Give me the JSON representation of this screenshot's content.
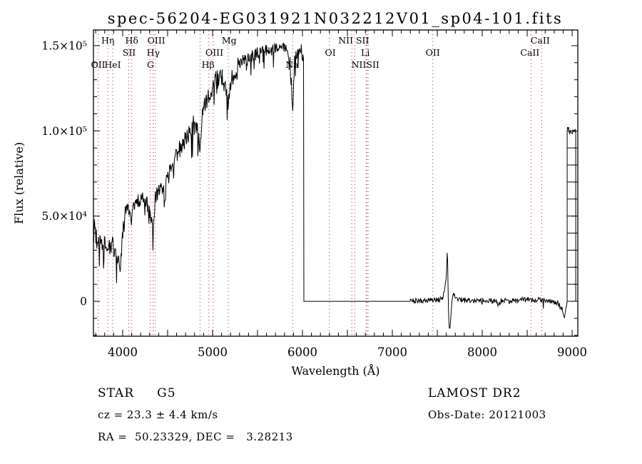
{
  "title": "spec-56204-EG031921N032212V01_sp04-101.fits",
  "annotations": {
    "class_label": "STAR     G5",
    "cz": "cz = 23.3 ± 4.4 km/s",
    "radec": "RA =  50.23329, DEC =   3.28213",
    "survey": "LAMOST DR2",
    "obs_date": "Obs-Date: 20121003"
  },
  "chart_data": {
    "type": "line",
    "title": "spec-56204-EG031921N032212V01_sp04-101.fits",
    "xlabel": "Wavelength (Å)",
    "ylabel": "Flux (relative)",
    "xlim": [
      3675,
      9063
    ],
    "ylim": [
      -20500,
      159200
    ],
    "grid": false,
    "x_ticks": [
      {
        "value": 4000,
        "label": "4000"
      },
      {
        "value": 5000,
        "label": "5000"
      },
      {
        "value": 6000,
        "label": "6000"
      },
      {
        "value": 7000,
        "label": "7000"
      },
      {
        "value": 8000,
        "label": "8000"
      },
      {
        "value": 9000,
        "label": "9000"
      }
    ],
    "x_minor_step": 100,
    "x_major_step": 500,
    "y_ticks": [
      {
        "value": 0,
        "label": "0"
      },
      {
        "value": 50000,
        "label": "5.0×10⁴"
      },
      {
        "value": 100000,
        "label": "1.0×10⁵"
      },
      {
        "value": 150000,
        "label": "1.5×10⁵"
      }
    ],
    "y_minor_step": 10000,
    "y_major_step": 50000,
    "spectrum_color": "#000000",
    "marker_color": "#a83232",
    "line_markers": [
      3727,
      3835,
      3889,
      4068,
      4101,
      4305,
      4340,
      4363,
      4861,
      4959,
      5007,
      5175,
      5892,
      6300,
      6548,
      6583,
      6708,
      6716,
      6731,
      7450,
      8542,
      8662
    ],
    "line_labels": [
      {
        "text": "Hη",
        "anchor": 3835,
        "row": 1
      },
      {
        "text": "Hδ",
        "anchor": 4101,
        "row": 1
      },
      {
        "text": "OIII",
        "anchor": 4375,
        "row": 1
      },
      {
        "text": "Mg",
        "anchor": 5185,
        "row": 1
      },
      {
        "text": "NII SII",
        "anchor": 6570,
        "row": 1
      },
      {
        "text": "CaII",
        "anchor": 8645,
        "row": 1
      },
      {
        "text": "SII",
        "anchor": 4072,
        "row": 2
      },
      {
        "text": "Hγ",
        "anchor": 4340,
        "row": 2
      },
      {
        "text": "OIII",
        "anchor": 5020,
        "row": 2
      },
      {
        "text": "OI",
        "anchor": 6310,
        "row": 2
      },
      {
        "text": "Li",
        "anchor": 6700,
        "row": 2
      },
      {
        "text": "OII",
        "anchor": 7450,
        "row": 2
      },
      {
        "text": "CaII",
        "anchor": 8530,
        "row": 2
      },
      {
        "text": "OII",
        "anchor": 3727,
        "row": 3
      },
      {
        "text": "HeI",
        "anchor": 3889,
        "row": 3
      },
      {
        "text": "G",
        "anchor": 4310,
        "row": 3
      },
      {
        "text": "Hβ",
        "anchor": 4950,
        "row": 3
      },
      {
        "text": "Na",
        "anchor": 5885,
        "row": 3
      },
      {
        "text": "NIISII",
        "anchor": 6700,
        "row": 3
      }
    ],
    "blue_segment_points": [
      [
        3677,
        36000
      ],
      [
        3690,
        48000
      ],
      [
        3700,
        38000
      ],
      [
        3720,
        33000
      ],
      [
        3740,
        36000
      ],
      [
        3760,
        33000
      ],
      [
        3780,
        38000
      ],
      [
        3800,
        34000
      ],
      [
        3820,
        36000
      ],
      [
        3840,
        30000
      ],
      [
        3855,
        34000
      ],
      [
        3870,
        28000
      ],
      [
        3890,
        33000
      ],
      [
        3910,
        30000
      ],
      [
        3933,
        20000
      ],
      [
        3950,
        29000
      ],
      [
        3968,
        15000
      ],
      [
        3985,
        28000
      ],
      [
        4000,
        40000
      ],
      [
        4020,
        50000
      ],
      [
        4045,
        57000
      ],
      [
        4070,
        54000
      ],
      [
        4101,
        47000
      ],
      [
        4120,
        57000
      ],
      [
        4150,
        60000
      ],
      [
        4180,
        58000
      ],
      [
        4215,
        62000
      ],
      [
        4250,
        59000
      ],
      [
        4280,
        56000
      ],
      [
        4305,
        50000
      ],
      [
        4340,
        43000
      ],
      [
        4360,
        60000
      ],
      [
        4390,
        64000
      ],
      [
        4420,
        66000
      ],
      [
        4450,
        67000
      ],
      [
        4470,
        63000
      ],
      [
        4490,
        70000
      ],
      [
        4520,
        76000
      ],
      [
        4560,
        80000
      ],
      [
        4600,
        87000
      ],
      [
        4640,
        90000
      ],
      [
        4680,
        94000
      ],
      [
        4720,
        97000
      ],
      [
        4760,
        101000
      ],
      [
        4800,
        107000
      ],
      [
        4830,
        101000
      ],
      [
        4861,
        89000
      ],
      [
        4880,
        108000
      ],
      [
        4910,
        114000
      ],
      [
        4940,
        118000
      ],
      [
        4970,
        122000
      ],
      [
        5000,
        126000
      ],
      [
        5040,
        130000
      ],
      [
        5080,
        132000
      ],
      [
        5120,
        131000
      ],
      [
        5155,
        124000
      ],
      [
        5175,
        113000
      ],
      [
        5200,
        128000
      ],
      [
        5240,
        134000
      ],
      [
        5280,
        138000
      ],
      [
        5320,
        140000
      ],
      [
        5360,
        141000
      ],
      [
        5400,
        142000
      ],
      [
        5450,
        144000
      ],
      [
        5500,
        145500
      ],
      [
        5550,
        146500
      ],
      [
        5600,
        147000
      ],
      [
        5650,
        147500
      ],
      [
        5700,
        148500
      ],
      [
        5750,
        150500
      ],
      [
        5800,
        149000
      ],
      [
        5840,
        146000
      ],
      [
        5870,
        140000
      ],
      [
        5890,
        107000
      ],
      [
        5910,
        140000
      ],
      [
        5940,
        146000
      ],
      [
        5970,
        149500
      ],
      [
        5990,
        147000
      ],
      [
        6010,
        141000
      ]
    ],
    "gap_region": [
      6016,
      7198
    ],
    "red_segment_points": [
      [
        7198,
        200
      ],
      [
        7300,
        300
      ],
      [
        7430,
        600
      ],
      [
        7520,
        900
      ],
      [
        7560,
        2500
      ],
      [
        7585,
        7000
      ],
      [
        7600,
        14000
      ],
      [
        7610,
        31000
      ],
      [
        7617,
        20000
      ],
      [
        7622,
        -2000
      ],
      [
        7630,
        -14000
      ],
      [
        7638,
        -18500
      ],
      [
        7652,
        -8000
      ],
      [
        7668,
        2500
      ],
      [
        7690,
        4000
      ],
      [
        7720,
        1500
      ],
      [
        7780,
        600
      ],
      [
        7900,
        400
      ],
      [
        8050,
        600
      ],
      [
        8150,
        200
      ],
      [
        8184,
        -2600
      ],
      [
        8210,
        400
      ],
      [
        8300,
        900
      ],
      [
        8380,
        400
      ],
      [
        8460,
        900
      ],
      [
        8520,
        1400
      ],
      [
        8560,
        400
      ],
      [
        8620,
        1100
      ],
      [
        8700,
        300
      ],
      [
        8770,
        -300
      ],
      [
        8840,
        -1200
      ],
      [
        8880,
        -3500
      ],
      [
        8913,
        -9500
      ],
      [
        8930,
        -4000
      ],
      [
        8945,
        0
      ]
    ],
    "edge_artifact": {
      "x_start": 8945,
      "x_end": 9040,
      "flux_top": 100000,
      "rung_step": 10000
    },
    "noise": {
      "seed": 20121003,
      "sample_step": 5,
      "clip_top": 158600,
      "regions": [
        [
          3675,
          3960,
          6000
        ],
        [
          3960,
          4450,
          4300
        ],
        [
          4450,
          5350,
          5200
        ],
        [
          5350,
          6016,
          3600
        ],
        [
          7198,
          8945,
          1500
        ]
      ],
      "blue_spike_prob": 0.07,
      "blue_spike_scale": 2.2,
      "red_spike_prob": 0.02,
      "red_spike_scale": 2.5,
      "cap_amp": 2200
    }
  }
}
